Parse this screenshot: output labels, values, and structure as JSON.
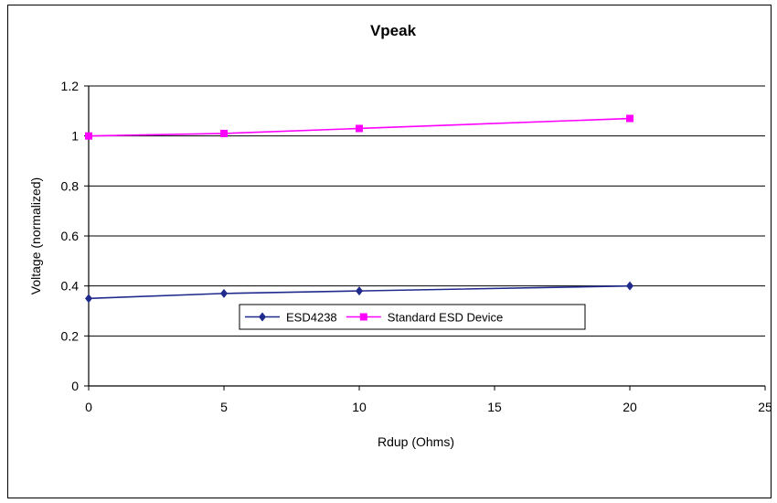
{
  "chart_data": {
    "type": "line",
    "title": "Vpeak",
    "xlabel": "Rdup (Ohms)",
    "ylabel": "Voltage (normalized)",
    "xlim": [
      0,
      25
    ],
    "ylim": [
      0,
      1.2
    ],
    "xticks": [
      "0",
      "5",
      "10",
      "15",
      "20",
      "25"
    ],
    "yticks": [
      "0",
      "0.2",
      "0.4",
      "0.6",
      "0.8",
      "1",
      "1.2"
    ],
    "grid": "horizontal",
    "legend_position": "center",
    "series": [
      {
        "name": "ESD4238",
        "color": "#1f2a8c",
        "marker": "diamond",
        "x": [
          0,
          5,
          10,
          20
        ],
        "y": [
          0.35,
          0.37,
          0.38,
          0.4
        ]
      },
      {
        "name": "Standard ESD Device",
        "color": "#ff00ff",
        "marker": "square",
        "x": [
          0,
          5,
          10,
          20
        ],
        "y": [
          1.0,
          1.01,
          1.03,
          1.07
        ]
      }
    ]
  }
}
